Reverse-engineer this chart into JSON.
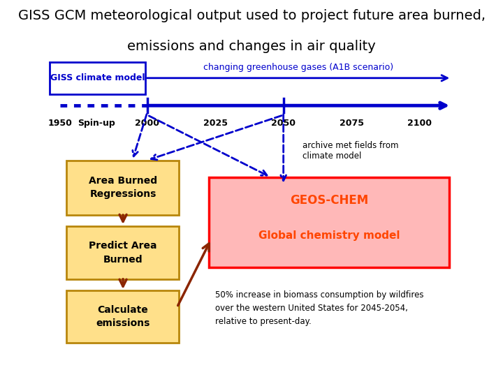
{
  "title_line1": "GISS GCM meteorological output used to project future area burned,",
  "title_line2": "emissions and changes in air quality",
  "title_fontsize": 14,
  "bg_color": "#ffffff",
  "blue_dark": "#0000CC",
  "gold_fill": "#FFE08A",
  "gold_border": "#B8860B",
  "red_fill": "#FFB8B8",
  "red_border": "#FF0000",
  "red_text": "#FF4500",
  "brown_arrow": "#8B2500",
  "timeline_labels": [
    "1950",
    "Spin-up",
    "2000",
    "2025",
    "2050",
    "2075",
    "2100"
  ],
  "timeline_x": [
    0.05,
    0.135,
    0.255,
    0.415,
    0.575,
    0.735,
    0.895
  ],
  "giss_box_label": "GISS climate model",
  "ghg_label": "changing greenhouse gases (A1B scenario)",
  "archive_label": "archive met fields from\nclimate model",
  "box1_label": "Area Burned\nRegressions",
  "box2_label": "Predict Area\nBurned",
  "box3_label": "Calculate\nemissions",
  "geoschem_title": "GEOS-CHEM",
  "geoschem_sub": "Global chemistry model",
  "result_text": "50% increase in biomass consumption by wildfires\nover the western United States for 2045-2054,\nrelative to present-day."
}
